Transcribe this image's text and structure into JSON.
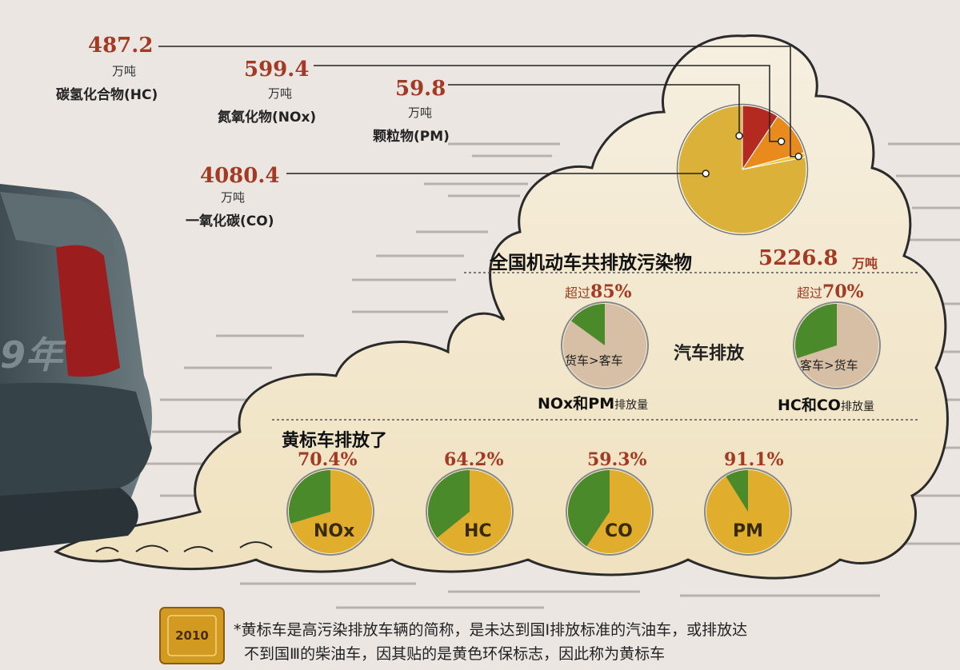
{
  "chart_data": [
    {
      "type": "pie",
      "title": "全国机动车共排放污染物",
      "total": {
        "value": 5226.8,
        "label": "5226.8",
        "unit": "万吨"
      },
      "unit": "万吨",
      "slices": [
        {
          "name": "一氧化碳(CO)",
          "value": 4080.4,
          "label": "4080.4",
          "color": "#dcb13a"
        },
        {
          "name": "碳氢化合物(HC)",
          "value": 487.2,
          "label": "487.2",
          "color": "#b52a20"
        },
        {
          "name": "氮氧化物(NOx)",
          "value": 599.4,
          "label": "599.4",
          "color": "#e88a1c"
        },
        {
          "name": "颗粒物(PM)",
          "value": 59.8,
          "label": "59.8",
          "color": "#f1c232"
        }
      ]
    },
    {
      "type": "pie",
      "group_label": "汽车排放",
      "charts": [
        {
          "header_prefix": "超过",
          "header_value": "85%",
          "share": 0.85,
          "inside_label": "货车>客车",
          "caption_bold": "NOx和PM",
          "caption_small": "排放量"
        },
        {
          "header_prefix": "超过",
          "header_value": "70%",
          "share": 0.7,
          "inside_label": "客车>货车",
          "caption_bold": "HC和CO",
          "caption_small": "排放量"
        }
      ],
      "colors": {
        "major": "#d7bfa6",
        "minor": "#4a8a2a"
      }
    },
    {
      "type": "pie",
      "title": "黄标车排放了",
      "charts": [
        {
          "pollutant": "NOx",
          "value": 70.4,
          "label": "70.4%"
        },
        {
          "pollutant": "HC",
          "value": 64.2,
          "label": "64.2%"
        },
        {
          "pollutant": "CO",
          "value": 59.3,
          "label": "59.3%"
        },
        {
          "pollutant": "PM",
          "value": 91.1,
          "label": "91.1%"
        }
      ],
      "colors": {
        "share": "#e0ad2c",
        "rest": "#4a8a2a"
      }
    }
  ],
  "labels": {
    "unit": "万吨",
    "car_year": "9年",
    "badge_year": "2010"
  },
  "footnote": {
    "line1": "*黄标车是高污染排放车辆的简称，是未达到国Ⅰ排放标准的汽油车，或排放达",
    "line2": "不到国Ⅲ的柴油车，因其贴的是黄色环保标志，因此称为黄标车"
  },
  "colors": {
    "background": "#ece6e3",
    "cloud": "#f5ecd6",
    "cloud_outline": "#2b2b2b",
    "accent_red": "#a33a24",
    "car_body": "#4c5a60",
    "tail_light": "#9c1d1d"
  }
}
